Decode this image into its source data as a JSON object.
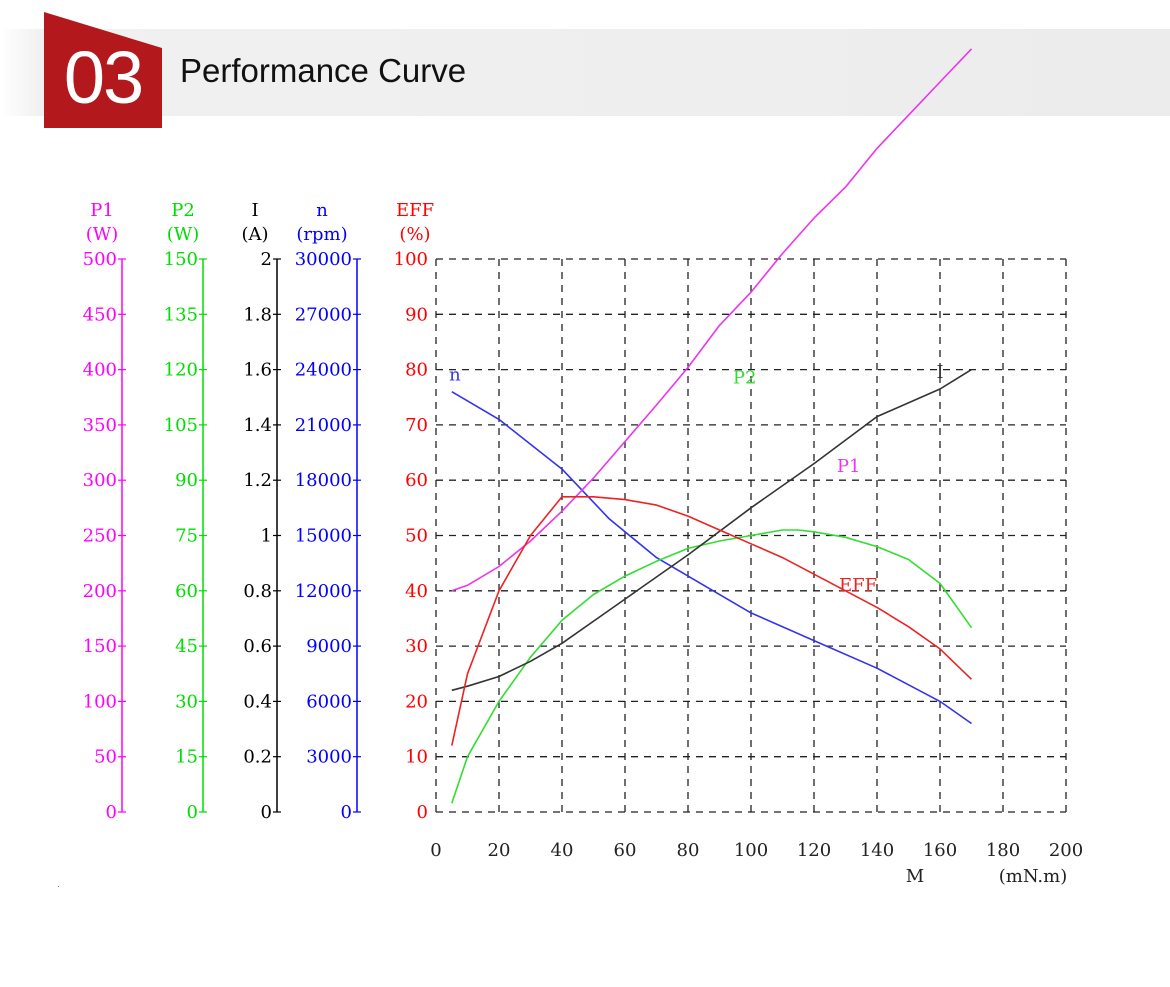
{
  "header": {
    "number": "03",
    "title": "Performance Curve",
    "badge_color": "#b3191c"
  },
  "chart_data": {
    "type": "line",
    "grid": true,
    "x_axis": {
      "label": "M",
      "unit": "(mN.m)",
      "range": [
        0,
        200
      ],
      "ticks": [
        "0",
        "20",
        "40",
        "60",
        "80",
        "100",
        "120",
        "140",
        "160",
        "180",
        "200"
      ]
    },
    "y_axes": [
      {
        "key": "P1",
        "label": "P1",
        "unit": "(W)",
        "color": "#ff00ff",
        "range": [
          0,
          500
        ],
        "ticks": [
          "0",
          "50",
          "100",
          "150",
          "200",
          "250",
          "300",
          "350",
          "400",
          "450",
          "500"
        ]
      },
      {
        "key": "P2",
        "label": "P2",
        "unit": "(W)",
        "color": "#00dd00",
        "range": [
          0,
          150
        ],
        "ticks": [
          "0",
          "15",
          "30",
          "45",
          "60",
          "75",
          "90",
          "105",
          "120",
          "135",
          "150"
        ]
      },
      {
        "key": "I",
        "label": "I",
        "unit": "(A)",
        "color": "#000000",
        "range": [
          0,
          2
        ],
        "ticks": [
          "0",
          "0.2",
          "0.4",
          "0.6",
          "0.8",
          "1",
          "1.2",
          "1.4",
          "1.6",
          "1.8",
          "2"
        ]
      },
      {
        "key": "n",
        "label": "n",
        "unit": "(rpm)",
        "color": "#0000ff",
        "range": [
          0,
          30000
        ],
        "ticks": [
          "0",
          "3000",
          "6000",
          "9000",
          "12000",
          "15000",
          "18000",
          "21000",
          "24000",
          "27000",
          "30000"
        ]
      },
      {
        "key": "EFF",
        "label": "EFF",
        "unit": "(%)",
        "color": "#ff0000",
        "range": [
          0,
          100
        ],
        "ticks": [
          "0",
          "10",
          "20",
          "30",
          "40",
          "50",
          "60",
          "70",
          "80",
          "90",
          "100"
        ]
      }
    ],
    "series": [
      {
        "name": "n",
        "axis": "n",
        "color": "#3333ee",
        "x": [
          5,
          20,
          40,
          55,
          70,
          85,
          100,
          120,
          140,
          160,
          170
        ],
        "y": [
          22800,
          21300,
          18600,
          15900,
          13800,
          12300,
          10800,
          9300,
          7800,
          6000,
          4800
        ]
      },
      {
        "name": "P2",
        "axis": "P2",
        "color": "#33dd33",
        "x": [
          5,
          10,
          20,
          30,
          40,
          50,
          60,
          70,
          80,
          90,
          100,
          110,
          115,
          120,
          130,
          140,
          150,
          160,
          170
        ],
        "y": [
          2.4,
          15,
          30,
          42,
          52,
          59,
          64,
          68,
          71.5,
          73.5,
          75,
          76.5,
          76.5,
          76,
          74.5,
          72,
          68.5,
          62,
          50
        ]
      },
      {
        "name": "I",
        "axis": "I",
        "color": "#333333",
        "x": [
          5,
          10,
          20,
          30,
          40,
          60,
          80,
          100,
          120,
          140,
          160,
          170
        ],
        "y": [
          0.44,
          0.455,
          0.49,
          0.545,
          0.61,
          0.77,
          0.93,
          1.1,
          1.26,
          1.43,
          1.53,
          1.6
        ]
      },
      {
        "name": "P1",
        "axis": "P1",
        "color": "#ee33ee",
        "x": [
          5,
          10,
          20,
          30,
          40,
          50,
          60,
          70,
          80,
          90,
          100,
          110,
          120,
          130,
          140,
          150,
          160,
          170
        ],
        "y": [
          200,
          205,
          222,
          245,
          272,
          302,
          335,
          368,
          402,
          440,
          470,
          505,
          537,
          565,
          600,
          630,
          660,
          690
        ]
      },
      {
        "name": "EFF",
        "axis": "EFF",
        "color": "#ee2222",
        "x": [
          5,
          10,
          20,
          30,
          40,
          50,
          60,
          70,
          80,
          90,
          100,
          110,
          120,
          130,
          140,
          150,
          160,
          170
        ],
        "y": [
          12,
          25,
          40,
          50,
          57,
          57,
          56.5,
          55.5,
          53.5,
          51,
          48.5,
          46,
          43,
          40,
          37,
          33.5,
          29.5,
          24
        ]
      }
    ],
    "curve_labels": [
      {
        "text": "n",
        "color": "#3333ee",
        "x": 6,
        "y": 78
      },
      {
        "text": "P2",
        "color": "#33dd33",
        "x": 98,
        "y": 77.5
      },
      {
        "text": "I",
        "color": "#333333",
        "x": 160,
        "y": 78.5
      },
      {
        "text": "P1",
        "color": "#ee33ee",
        "x": 131,
        "y": 61.5
      },
      {
        "text": "EFF",
        "color": "#ee2222",
        "x": 134,
        "y": 40
      }
    ]
  }
}
